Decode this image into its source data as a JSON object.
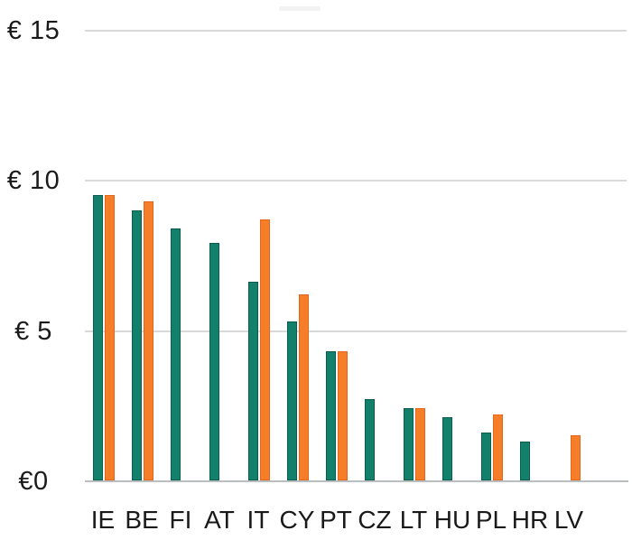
{
  "chart_data": {
    "type": "bar",
    "title": "",
    "categories": [
      "IE",
      "BE",
      "FI",
      "AT",
      "IT",
      "CY",
      "PT",
      "CZ",
      "LT",
      "HU",
      "PL",
      "HR",
      "LV"
    ],
    "series": [
      {
        "name": "green",
        "color": "#12806B",
        "border_color": "#0A5D4C",
        "values": [
          9.5,
          9.0,
          8.4,
          7.9,
          6.6,
          5.3,
          4.3,
          2.7,
          2.4,
          2.1,
          1.6,
          1.3,
          null
        ]
      },
      {
        "name": "orange",
        "color": "#F67E28",
        "border_color": "#E4661C",
        "values": [
          9.5,
          9.3,
          null,
          null,
          8.7,
          6.2,
          4.3,
          null,
          2.4,
          null,
          2.2,
          null,
          1.5
        ]
      }
    ],
    "y_axis": {
      "unit": "€",
      "tick_labels": [
        "€ 15",
        "€ 10",
        "€ 5",
        "€0"
      ],
      "tick_values": [
        15,
        10,
        5,
        0
      ]
    },
    "ylim": [
      0,
      15
    ],
    "grid": true,
    "legend": "none",
    "colors": {
      "gridline": "#D9D9D9",
      "axis_line": "#B9BEC1",
      "text": "#1A1A1A",
      "background": "#FFFFFF"
    }
  }
}
